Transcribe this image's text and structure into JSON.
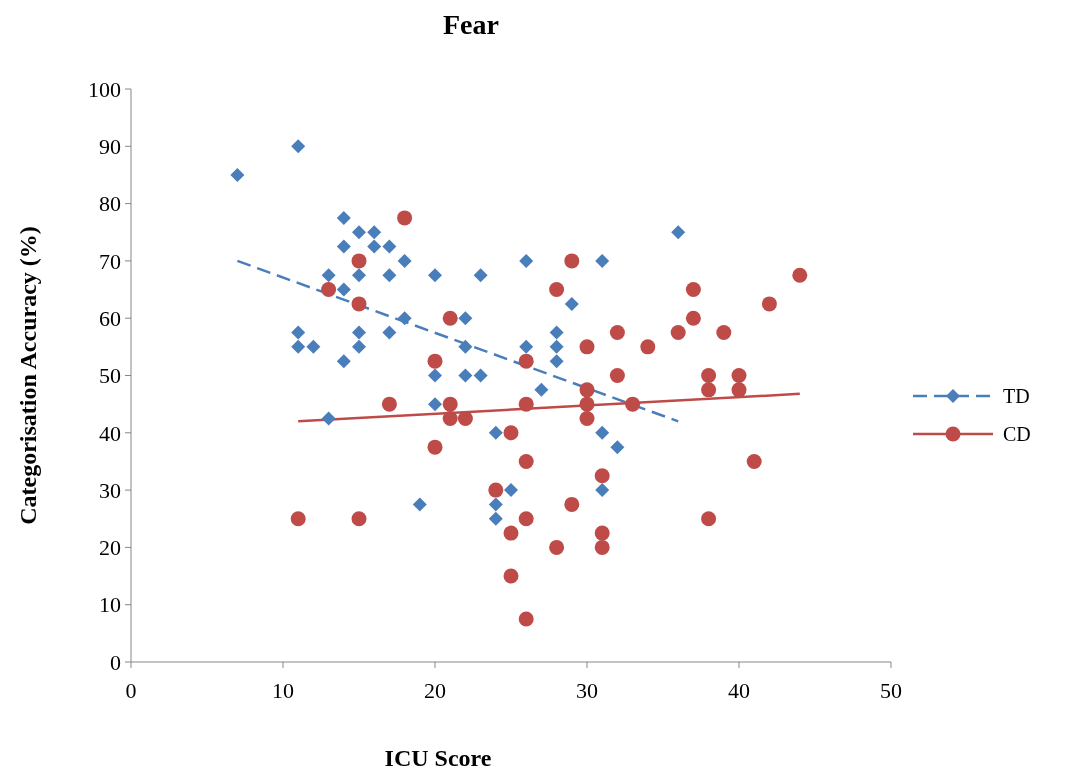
{
  "chart_data": {
    "type": "scatter",
    "title": "Fear",
    "xlabel": "ICU Score",
    "ylabel": "Categorisation Accuracy (%)",
    "xlim": [
      0,
      50
    ],
    "xticks": [
      0,
      10,
      20,
      30,
      40,
      50
    ],
    "ylim": [
      0,
      100
    ],
    "yticks": [
      0,
      10,
      20,
      30,
      40,
      50,
      60,
      70,
      80,
      90,
      100
    ],
    "grid": false,
    "legend": "right",
    "series": [
      {
        "name": "TD",
        "marker": "diamond",
        "color": "#4a7ebb",
        "x": [
          7,
          11,
          11,
          11,
          12,
          13,
          13,
          14,
          14,
          14,
          14,
          15,
          15,
          15,
          15,
          16,
          16,
          17,
          17,
          17,
          18,
          18,
          19,
          20,
          20,
          20,
          22,
          22,
          22,
          23,
          23,
          24,
          24,
          24,
          25,
          26,
          26,
          27,
          28,
          28,
          28,
          29,
          31,
          31,
          31,
          32,
          36
        ],
        "values": [
          85,
          90,
          57.5,
          55,
          55,
          67.5,
          42.5,
          77.5,
          72.5,
          65,
          52.5,
          75,
          67.5,
          57.5,
          55,
          75,
          72.5,
          72.5,
          67.5,
          57.5,
          70,
          60,
          27.5,
          67.5,
          50,
          45,
          60,
          55,
          50,
          67.5,
          50,
          40,
          27.5,
          25,
          30,
          70,
          55,
          47.5,
          57.5,
          55,
          52.5,
          62.5,
          70,
          40,
          30,
          37.5,
          75
        ]
      },
      {
        "type": "line",
        "color": "#4a7ebb",
        "line_style": "dashed",
        "x": [
          7,
          36
        ],
        "values": [
          70,
          42
        ]
      },
      {
        "name": "CD",
        "marker": "circle",
        "color": "#be4b48",
        "x": [
          11,
          13,
          15,
          15,
          15,
          17,
          18,
          20,
          20,
          21,
          21,
          21,
          22,
          24,
          25,
          25,
          25,
          26,
          26,
          26,
          26,
          26,
          28,
          28,
          29,
          29,
          30,
          30,
          30,
          30,
          31,
          31,
          31,
          32,
          32,
          33,
          34,
          36,
          37,
          37,
          38,
          38,
          38,
          39,
          40,
          40,
          41,
          42,
          44
        ],
        "values": [
          25,
          65,
          70,
          62.5,
          25,
          45,
          77.5,
          52.5,
          37.5,
          60,
          45,
          42.5,
          42.5,
          30,
          40,
          22.5,
          15,
          52.5,
          45,
          35,
          25,
          7.5,
          65,
          20,
          70,
          27.5,
          55,
          47.5,
          45,
          42.5,
          32.5,
          22.5,
          20,
          57.5,
          50,
          45,
          55,
          57.5,
          65,
          60,
          50,
          47.5,
          25,
          57.5,
          50,
          47.5,
          35,
          62.5,
          67.5
        ]
      },
      {
        "type": "line",
        "color": "#be4b48",
        "line_style": "solid",
        "x": [
          11,
          44
        ],
        "values": [
          42,
          46.8
        ]
      }
    ]
  }
}
